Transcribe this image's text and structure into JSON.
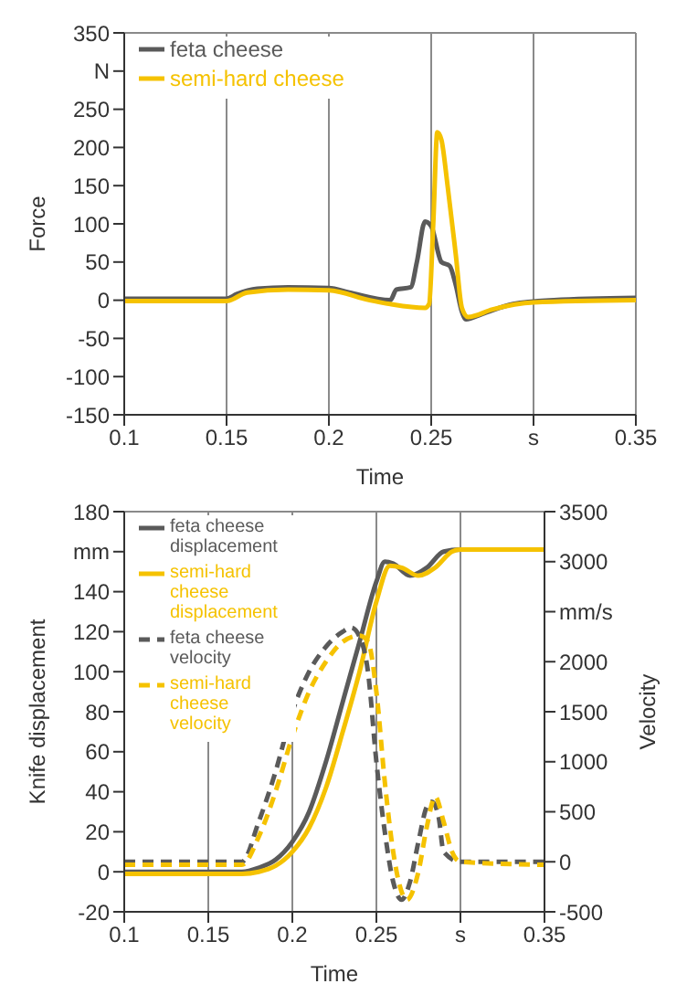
{
  "chart_data": [
    {
      "type": "line",
      "xlabel": "Time",
      "ylabel": "Force",
      "xlim": [
        0.1,
        0.35
      ],
      "xticks": [
        0.1,
        0.15,
        0.2,
        0.25,
        {
          "value": 0.3,
          "label": "s"
        },
        0.35
      ],
      "ylim": [
        -150,
        350
      ],
      "yticks": [
        -150,
        -100,
        -50,
        0,
        50,
        100,
        150,
        200,
        250,
        {
          "value": 300,
          "label": "N"
        },
        350
      ],
      "grid": true,
      "legend": "top left",
      "line_style": "solid",
      "marker": "none",
      "series": [
        {
          "name": "feta cheese",
          "color": "#5a5a5a",
          "x": [
            0.1,
            0.15,
            0.155,
            0.165,
            0.18,
            0.2,
            0.21,
            0.23,
            0.233,
            0.24,
            0.243,
            0.247,
            0.25,
            0.255,
            0.259,
            0.262,
            0.265,
            0.267,
            0.275,
            0.29,
            0.31,
            0.35
          ],
          "values": [
            2,
            2,
            8,
            15,
            17,
            16,
            10,
            0,
            14,
            17,
            50,
            103,
            97,
            50,
            45,
            20,
            -15,
            -25,
            -18,
            -5,
            0,
            3
          ]
        },
        {
          "name": "semi-hard cheese",
          "color": "#f5c200",
          "x": [
            0.1,
            0.15,
            0.16,
            0.18,
            0.2,
            0.22,
            0.23,
            0.247,
            0.249,
            0.251,
            0.253,
            0.255,
            0.258,
            0.262,
            0.265,
            0.268,
            0.28,
            0.3,
            0.35
          ],
          "values": [
            -1,
            -1,
            10,
            14,
            13,
            0,
            -5,
            -10,
            -5,
            100,
            220,
            210,
            150,
            60,
            -10,
            -22,
            -12,
            -3,
            0
          ]
        }
      ]
    },
    {
      "type": "line",
      "xlabel": "Time",
      "ylabel": "Knife displacement",
      "y2label": "Velocity",
      "xlim": [
        0.1,
        0.35
      ],
      "xticks": [
        0.1,
        0.15,
        0.2,
        0.25,
        {
          "value": 0.3,
          "label": "s"
        },
        0.35
      ],
      "ylim": [
        -20,
        180
      ],
      "yticks": [
        -20,
        0,
        20,
        40,
        60,
        80,
        100,
        120,
        140,
        {
          "value": 160,
          "label": "mm"
        },
        180
      ],
      "y2lim": [
        -500,
        3500
      ],
      "y2ticks": [
        -500,
        0,
        500,
        1000,
        1500,
        2000,
        {
          "value": 2500,
          "label": "mm/s"
        },
        3000,
        3500
      ],
      "grid": true,
      "legend": "top left",
      "marker": "none",
      "series": [
        {
          "name": "feta cheese displacement",
          "color": "#5a5a5a",
          "line_style": "solid",
          "x": [
            0.1,
            0.17,
            0.18,
            0.19,
            0.2,
            0.21,
            0.22,
            0.23,
            0.24,
            0.25,
            0.255,
            0.26,
            0.27,
            0.28,
            0.29,
            0.3,
            0.35
          ],
          "values": [
            0,
            0,
            2,
            6,
            15,
            30,
            55,
            85,
            115,
            145,
            155,
            154,
            148,
            152,
            160,
            161,
            161
          ]
        },
        {
          "name": "semi-hard cheese displacement",
          "color": "#f5c200",
          "line_style": "solid",
          "x": [
            0.1,
            0.17,
            0.18,
            0.19,
            0.2,
            0.21,
            0.22,
            0.23,
            0.24,
            0.25,
            0.258,
            0.265,
            0.275,
            0.285,
            0.295,
            0.3,
            0.35
          ],
          "values": [
            -1,
            -1,
            0,
            3,
            10,
            22,
            42,
            70,
            100,
            135,
            153,
            152,
            148,
            152,
            160,
            161,
            161
          ]
        },
        {
          "name": "feta cheese velocity",
          "color": "#5a5a5a",
          "line_style": "dashed",
          "axis": "y2",
          "x": [
            0.1,
            0.17,
            0.18,
            0.19,
            0.2,
            0.21,
            0.22,
            0.23,
            0.235,
            0.24,
            0.245,
            0.25,
            0.255,
            0.26,
            0.265,
            0.27,
            0.275,
            0.28,
            0.283,
            0.287,
            0.29,
            0.3,
            0.35
          ],
          "values": [
            0,
            0,
            400,
            900,
            1500,
            1900,
            2150,
            2300,
            2340,
            2250,
            1900,
            1000,
            300,
            -200,
            -380,
            -200,
            200,
            550,
            600,
            450,
            100,
            0,
            0
          ]
        },
        {
          "name": "semi-hard cheese velocity",
          "color": "#f5c200",
          "line_style": "dashed",
          "axis": "y2",
          "x": [
            0.1,
            0.17,
            0.18,
            0.19,
            0.2,
            0.21,
            0.22,
            0.23,
            0.24,
            0.245,
            0.25,
            0.255,
            0.26,
            0.265,
            0.268,
            0.275,
            0.28,
            0.285,
            0.29,
            0.295,
            0.3,
            0.35
          ],
          "values": [
            -30,
            -30,
            250,
            700,
            1250,
            1700,
            2000,
            2200,
            2260,
            2200,
            1700,
            800,
            100,
            -300,
            -380,
            -100,
            350,
            650,
            400,
            100,
            0,
            -30
          ]
        }
      ]
    }
  ]
}
